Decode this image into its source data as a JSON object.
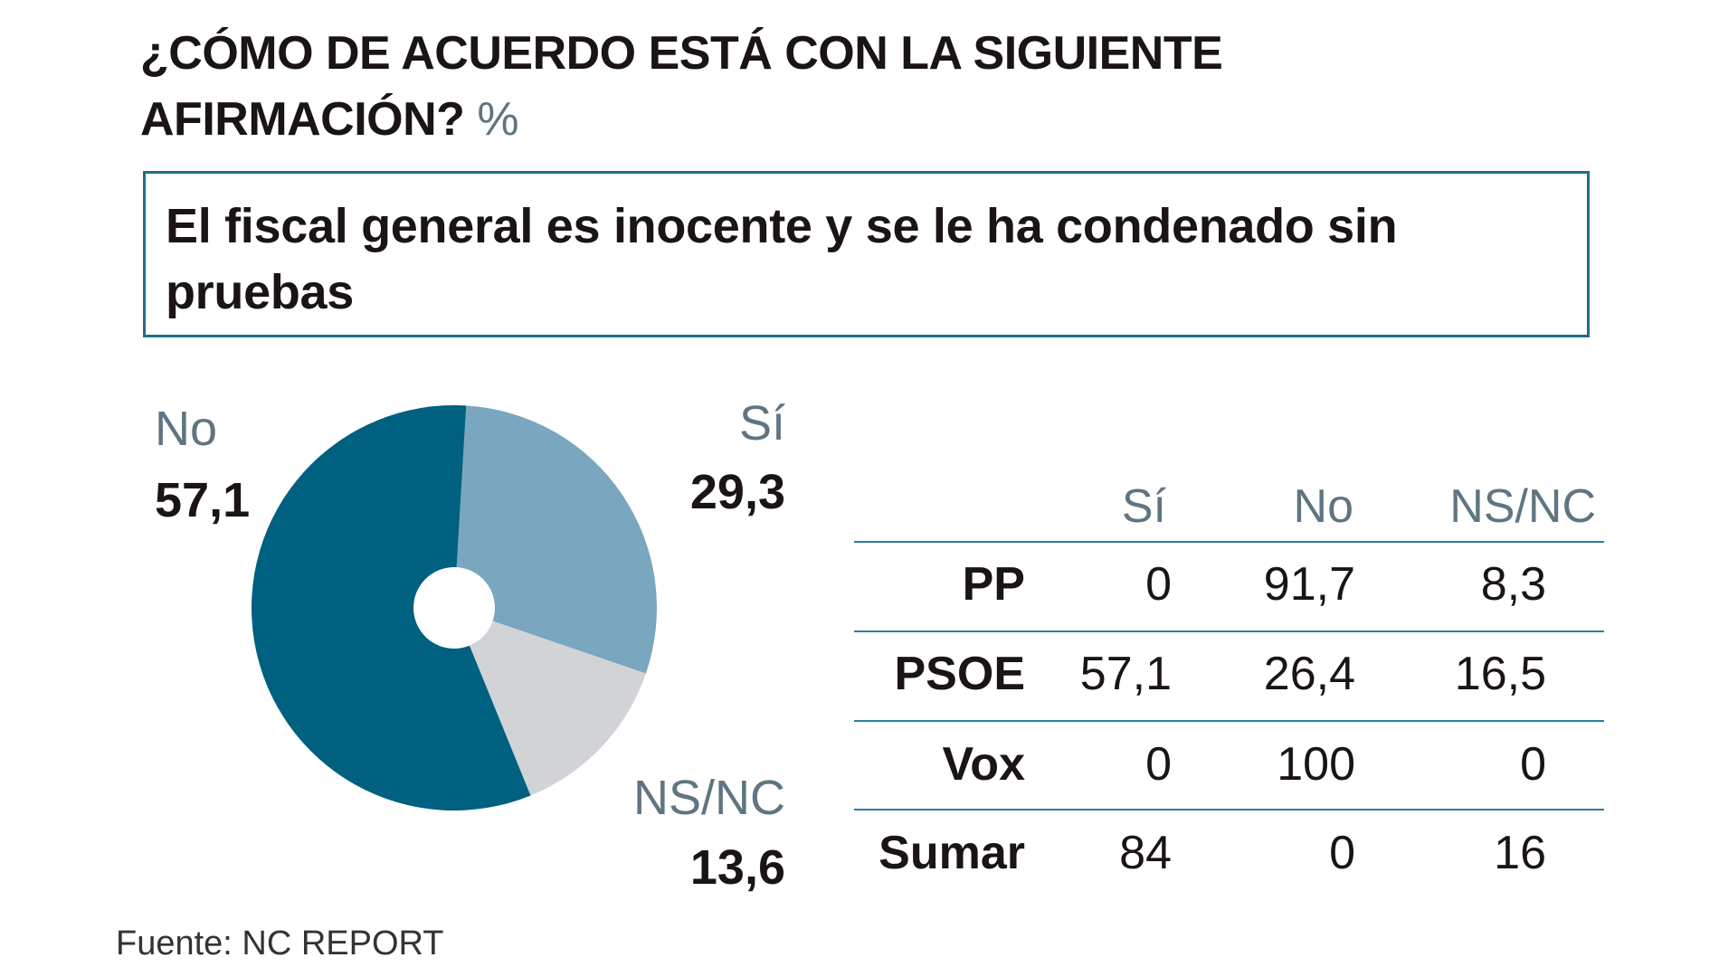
{
  "header": {
    "title_line1": "¿CÓMO DE ACUERDO ESTÁ CON LA SIGUIENTE",
    "title_line2": "AFIRMACIÓN?",
    "unit": "%"
  },
  "statement": "El fiscal general es inocente y se le ha condenado sin pruebas",
  "chart_data": [
    {
      "type": "pie",
      "donut": true,
      "slices": [
        {
          "label": "Sí",
          "value": 29.3,
          "display": "29,3",
          "color": "#7aa6bf"
        },
        {
          "label": "NS/NC",
          "value": 13.6,
          "display": "13,6",
          "color": "#d1d3d7"
        },
        {
          "label": "No",
          "value": 57.1,
          "display": "57,1",
          "color": "#00607f"
        }
      ]
    },
    {
      "type": "table",
      "columns": [
        "Sí",
        "No",
        "NS/NC"
      ],
      "rows": [
        {
          "party": "PP",
          "values": [
            "0",
            "91,7",
            "8,3"
          ]
        },
        {
          "party": "PSOE",
          "values": [
            "57,1",
            "26,4",
            "16,5"
          ]
        },
        {
          "party": "Vox",
          "values": [
            "0",
            "100",
            "0"
          ]
        },
        {
          "party": "Sumar",
          "values": [
            "84",
            "0",
            "16"
          ]
        }
      ]
    }
  ],
  "source": "Fuente: NC REPORT"
}
